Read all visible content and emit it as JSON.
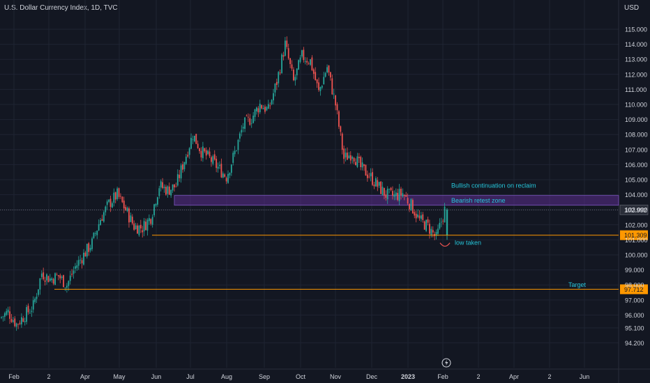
{
  "header": {
    "symbol_title": "U.S. Dollar Currency Index, 1D, TVC",
    "currency": "USD"
  },
  "colors": {
    "background": "#131722",
    "up_candle": "#26a69a",
    "down_candle": "#ef5350",
    "grid": "#1f2433",
    "axis_text": "#d1d4dc",
    "level_line": "#ff9800",
    "zone_fill": "#5b2d8e",
    "annotation_text": "#26c6da"
  },
  "chart_data": {
    "type": "candlestick",
    "title": "U.S. Dollar Currency Index, 1D, TVC",
    "y_axis": {
      "label": "USD",
      "ticks": [
        "115.000",
        "114.000",
        "113.000",
        "112.000",
        "111.000",
        "110.000",
        "109.000",
        "108.000",
        "107.000",
        "106.000",
        "105.000",
        "104.000",
        "103.000",
        "102.000",
        "101.000",
        "100.000",
        "99.000",
        "98.000",
        "97.000",
        "96.000",
        "95.100",
        "94.200"
      ],
      "range": [
        94.0,
        115.8
      ]
    },
    "x_axis": {
      "ticks": [
        "Feb",
        "2",
        "Apr",
        "May",
        "Jun",
        "Jul",
        "Aug",
        "Sep",
        "Oct",
        "Nov",
        "Dec",
        "2023",
        "Feb",
        "2",
        "Apr",
        "2",
        "Jun"
      ]
    },
    "series_points": [
      [
        "2022-02-01",
        95.8
      ],
      [
        "2022-02-08",
        96.2
      ],
      [
        "2022-02-15",
        95.4
      ],
      [
        "2022-02-22",
        96.0
      ],
      [
        "2022-03-01",
        96.6
      ],
      [
        "2022-03-08",
        98.8
      ],
      [
        "2022-03-15",
        98.4
      ],
      [
        "2022-03-22",
        98.6
      ],
      [
        "2022-03-29",
        98.0
      ],
      [
        "2022-04-05",
        99.2
      ],
      [
        "2022-04-12",
        100.0
      ],
      [
        "2022-04-19",
        100.8
      ],
      [
        "2022-04-26",
        102.4
      ],
      [
        "2022-05-03",
        103.4
      ],
      [
        "2022-05-10",
        104.0
      ],
      [
        "2022-05-17",
        103.0
      ],
      [
        "2022-05-24",
        101.9
      ],
      [
        "2022-05-31",
        101.8
      ],
      [
        "2022-06-07",
        102.5
      ],
      [
        "2022-06-14",
        104.6
      ],
      [
        "2022-06-21",
        104.3
      ],
      [
        "2022-06-28",
        104.6
      ],
      [
        "2022-07-05",
        106.3
      ],
      [
        "2022-07-12",
        108.0
      ],
      [
        "2022-07-19",
        106.9
      ],
      [
        "2022-07-26",
        106.4
      ],
      [
        "2022-08-02",
        105.8
      ],
      [
        "2022-08-09",
        105.2
      ],
      [
        "2022-08-16",
        106.8
      ],
      [
        "2022-08-23",
        108.6
      ],
      [
        "2022-08-30",
        109.1
      ],
      [
        "2022-09-06",
        110.0
      ],
      [
        "2022-09-13",
        109.6
      ],
      [
        "2022-09-20",
        111.5
      ],
      [
        "2022-09-27",
        114.0
      ],
      [
        "2022-10-04",
        111.5
      ],
      [
        "2022-10-11",
        113.2
      ],
      [
        "2022-10-18",
        112.9
      ],
      [
        "2022-10-25",
        110.8
      ],
      [
        "2022-11-01",
        112.5
      ],
      [
        "2022-11-08",
        110.0
      ],
      [
        "2022-11-15",
        106.4
      ],
      [
        "2022-11-22",
        106.8
      ],
      [
        "2022-11-29",
        105.8
      ],
      [
        "2022-12-06",
        105.3
      ],
      [
        "2022-12-13",
        104.6
      ],
      [
        "2022-12-20",
        104.0
      ],
      [
        "2022-12-27",
        103.9
      ],
      [
        "2023-01-03",
        104.1
      ],
      [
        "2023-01-10",
        103.3
      ],
      [
        "2023-01-17",
        102.3
      ],
      [
        "2023-01-24",
        101.9
      ],
      [
        "2023-01-31",
        101.1
      ],
      [
        "2023-02-03",
        102.99
      ]
    ],
    "last_price_label": "102.992",
    "levels": [
      {
        "label": "101.309",
        "value": 101.309
      },
      {
        "label": "97.712",
        "value": 97.712
      }
    ],
    "zone": {
      "label": "Bearish retest zone",
      "low": 103.3,
      "high": 103.95
    },
    "annotations": {
      "bullish": "Bullish continuation on reclaim",
      "zone": "Bearish retest zone",
      "low_taken": "low taken",
      "target": "Target"
    }
  }
}
